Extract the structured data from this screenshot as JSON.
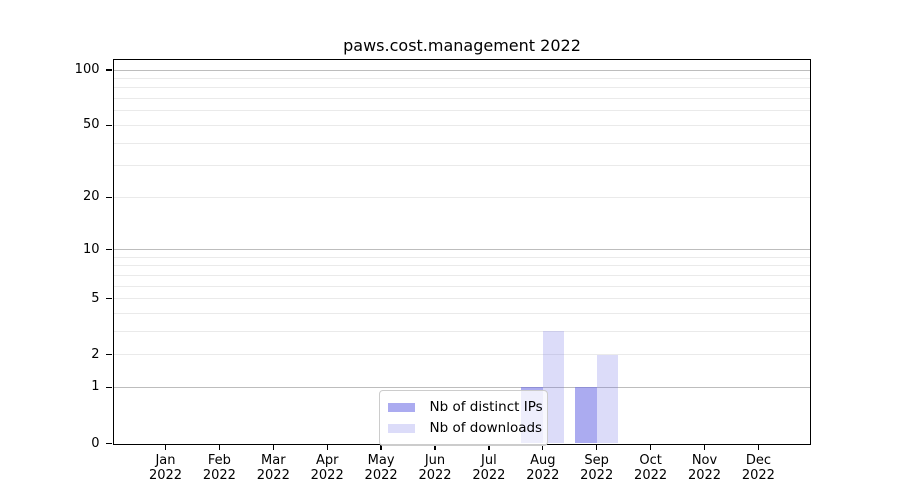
{
  "chart_data": {
    "type": "bar",
    "title": "paws.cost.management 2022",
    "categories": [
      "Jan",
      "Feb",
      "Mar",
      "Apr",
      "May",
      "Jun",
      "Jul",
      "Aug",
      "Sep",
      "Oct",
      "Nov",
      "Dec"
    ],
    "category_year": "2022",
    "series": [
      {
        "name": "Nb of distinct IPs",
        "color": "rgba(110,110,230,0.58)",
        "values": [
          0,
          0,
          0,
          0,
          0,
          0,
          0,
          1,
          1,
          0,
          0,
          0
        ]
      },
      {
        "name": "Nb of downloads",
        "color": "rgba(110,110,230,0.24)",
        "values": [
          0,
          0,
          0,
          0,
          0,
          0,
          0,
          3,
          2,
          0,
          0,
          0
        ]
      }
    ],
    "y_scale": "log1p",
    "ylim": [
      0,
      113
    ],
    "y_labeled_ticks": [
      0,
      1,
      2,
      5,
      10,
      20,
      50,
      100
    ],
    "y_power_gridlines": [
      1,
      10,
      100
    ],
    "y_minor_gridlines": [
      3,
      4,
      6,
      7,
      8,
      9,
      30,
      40,
      60,
      70,
      80,
      90
    ],
    "grid": "horizontal",
    "legend_position": "lower center",
    "colors": {
      "major_gridline": "#bdbdbd",
      "minor_gridline": "#eaeaea",
      "axis": "#000000",
      "text": "#000000",
      "bar_ips_hex": "#aaaaf0",
      "bar_downloads_hex": "#dcdcf8"
    }
  }
}
